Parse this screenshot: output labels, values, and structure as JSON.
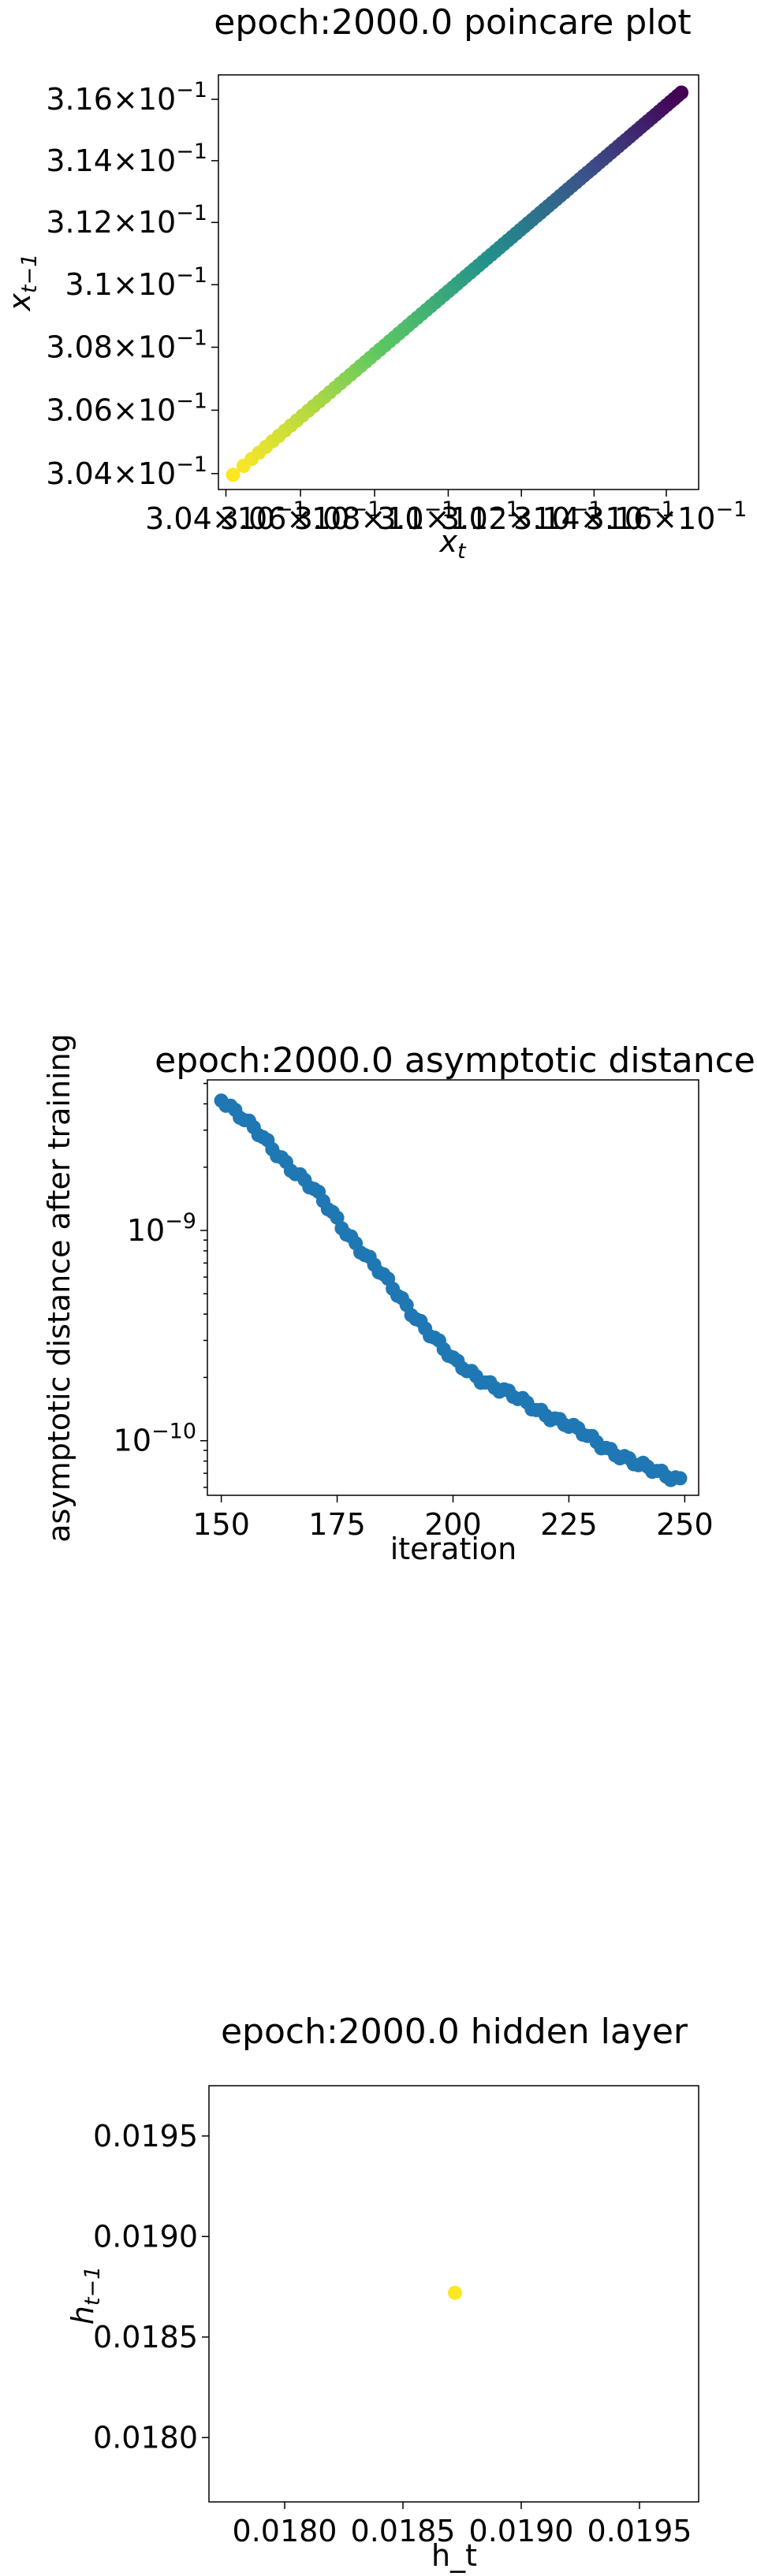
{
  "chart_data": [
    {
      "type": "scatter",
      "title": "epoch:2000.0 poincare plot",
      "xlabel_base": "x",
      "xlabel_sub": "t",
      "ylabel_base": "x",
      "ylabel_sub": "t−1",
      "xlim": [
        0.3038,
        0.3169
      ],
      "ylim": [
        0.3035,
        0.3168
      ],
      "x_ticks": [
        {
          "mant": "3.04",
          "exp": "−1",
          "value": 0.304
        },
        {
          "mant": "3.06",
          "exp": "−1",
          "value": 0.306
        },
        {
          "mant": "3.08",
          "exp": "−1",
          "value": 0.308
        },
        {
          "mant": "3.1",
          "exp": "−1",
          "value": 0.31
        },
        {
          "mant": "3.12",
          "exp": "−1",
          "value": 0.312
        },
        {
          "mant": "3.14",
          "exp": "−1",
          "value": 0.314
        },
        {
          "mant": "3.16",
          "exp": "−1",
          "value": 0.316
        }
      ],
      "y_ticks": [
        {
          "mant": "3.04",
          "exp": "−1",
          "value": 0.304
        },
        {
          "mant": "3.06",
          "exp": "−1",
          "value": 0.306
        },
        {
          "mant": "3.08",
          "exp": "−1",
          "value": 0.308
        },
        {
          "mant": "3.1",
          "exp": "−1",
          "value": 0.31
        },
        {
          "mant": "3.12",
          "exp": "−1",
          "value": 0.312
        },
        {
          "mant": "3.14",
          "exp": "−1",
          "value": 0.314
        },
        {
          "mant": "3.16",
          "exp": "−1",
          "value": 0.316
        }
      ],
      "x_scale": "log",
      "y_scale": "log",
      "colormap": "viridis",
      "colormap_stops": [
        "#fde725",
        "#5ec962",
        "#21918c",
        "#3b528b",
        "#440154"
      ],
      "n_points": 100,
      "points_start": [
        0.30419,
        0.30396
      ],
      "points_end": [
        0.31642,
        0.31622
      ]
    },
    {
      "type": "scatter",
      "title": "epoch:2000.0 asymptotic distance",
      "xlabel": "iteration",
      "ylabel": "asymptotic distance after training",
      "xlim": [
        147,
        253
      ],
      "ylim": [
        5.5e-11,
        5.2e-09
      ],
      "y_scale": "log",
      "x_ticks": [
        "150",
        "175",
        "200",
        "225",
        "250"
      ],
      "y_ticks": [
        {
          "base": "10",
          "exp": "−9",
          "value": 1e-09
        },
        {
          "base": "10",
          "exp": "−10",
          "value": 1e-10
        }
      ],
      "color": "#1f77b4",
      "x": [
        150,
        160,
        170,
        180,
        190,
        200,
        210,
        220,
        230,
        240,
        249
      ],
      "y": [
        4.3e-09,
        2.6e-09,
        1.55e-09,
        8.2e-10,
        4.4e-10,
        2.4e-10,
        1.75e-10,
        1.35e-10,
        1.02e-10,
        7.6e-11,
        6.6e-11
      ]
    },
    {
      "type": "scatter",
      "title": "epoch:2000.0 hidden layer",
      "xlabel": "h_t",
      "ylabel_base": "h",
      "ylabel_sub": "t−1",
      "xlim": [
        0.01768,
        0.01975
      ],
      "ylim": [
        0.01768,
        0.01975
      ],
      "x_ticks": [
        "0.0180",
        "0.0185",
        "0.0190",
        "0.0195"
      ],
      "y_ticks": [
        "0.0180",
        "0.0185",
        "0.0190",
        "0.0195"
      ],
      "color": "#fde725",
      "x": [
        0.01872
      ],
      "y": [
        0.01872
      ]
    }
  ]
}
